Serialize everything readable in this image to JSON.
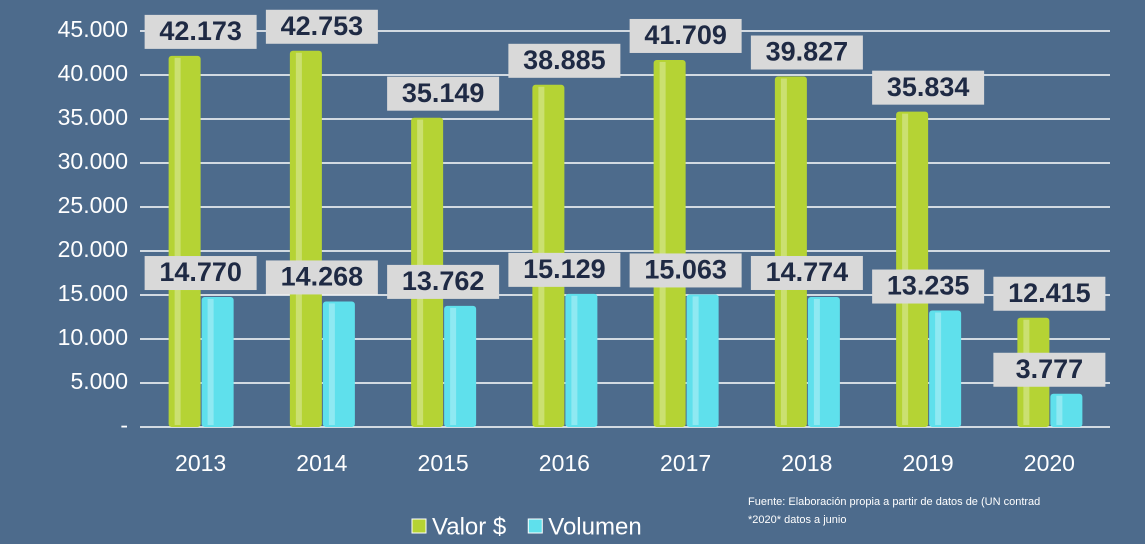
{
  "chart_data": {
    "type": "bar",
    "categories": [
      "2013",
      "2014",
      "2015",
      "2016",
      "2017",
      "2018",
      "2019",
      "2020"
    ],
    "series": [
      {
        "name": "Valor $",
        "color": "#b5d334",
        "values": [
          42173,
          42753,
          35149,
          38885,
          41709,
          39827,
          35834,
          12415
        ],
        "value_labels": [
          "42.173",
          "42.753",
          "35.149",
          "38.885",
          "41.709",
          "39.827",
          "35.834",
          "12.415"
        ]
      },
      {
        "name": "Volumen",
        "color": "#5fe0ec",
        "values": [
          14770,
          14268,
          13762,
          15129,
          15063,
          14774,
          13235,
          3777
        ],
        "value_labels": [
          "14.770",
          "14.268",
          "13.762",
          "15.129",
          "15.063",
          "14.774",
          "13.235",
          "3.777"
        ]
      }
    ],
    "ylim": [
      0,
      45000
    ],
    "yticks": [
      {
        "value": 0,
        "label": "-"
      },
      {
        "value": 5000,
        "label": "5.000"
      },
      {
        "value": 10000,
        "label": "10.000"
      },
      {
        "value": 15000,
        "label": "15.000"
      },
      {
        "value": 20000,
        "label": "20.000"
      },
      {
        "value": 25000,
        "label": "25.000"
      },
      {
        "value": 30000,
        "label": "30.000"
      },
      {
        "value": 35000,
        "label": "35.000"
      },
      {
        "value": 40000,
        "label": "40.000"
      },
      {
        "value": 45000,
        "label": "45.000"
      }
    ],
    "grid": true,
    "legend": "bottom",
    "source": "Fuente: Elaboración propia a partir de datos de (UN contrad",
    "note": "*2020* datos a junio"
  }
}
